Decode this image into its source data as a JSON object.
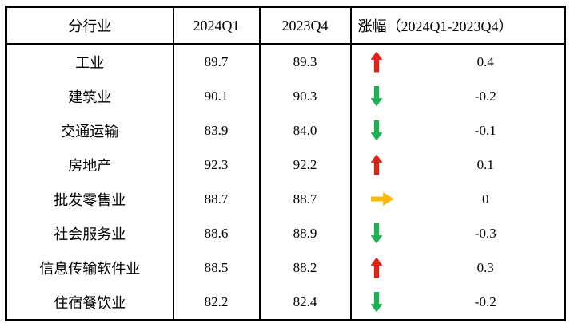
{
  "chart_data": {
    "type": "table",
    "title": "",
    "columns": {
      "industry": "分行业",
      "q1_2024": "2024Q1",
      "q4_2023": "2023Q4",
      "change": "涨幅（2024Q1-2023Q4）"
    },
    "rows": [
      {
        "industry": "工业",
        "q1_2024": "89.7",
        "q4_2023": "89.3",
        "direction": "up",
        "change": "0.4"
      },
      {
        "industry": "建筑业",
        "q1_2024": "90.1",
        "q4_2023": "90.3",
        "direction": "down",
        "change": "-0.2"
      },
      {
        "industry": "交通运输",
        "q1_2024": "83.9",
        "q4_2023": "84.0",
        "direction": "down",
        "change": "-0.1"
      },
      {
        "industry": "房地产",
        "q1_2024": "92.3",
        "q4_2023": "92.2",
        "direction": "up",
        "change": "0.1"
      },
      {
        "industry": "批发零售业",
        "q1_2024": "88.7",
        "q4_2023": "88.7",
        "direction": "flat",
        "change": "0"
      },
      {
        "industry": "社会服务业",
        "q1_2024": "88.6",
        "q4_2023": "88.9",
        "direction": "down",
        "change": "-0.3"
      },
      {
        "industry": "信息传输软件业",
        "q1_2024": "88.5",
        "q4_2023": "88.2",
        "direction": "up",
        "change": "0.3"
      },
      {
        "industry": "住宿餐饮业",
        "q1_2024": "82.2",
        "q4_2023": "82.4",
        "direction": "down",
        "change": "-0.2"
      }
    ],
    "colors": {
      "up": "#e02318",
      "down": "#1cb152",
      "flat": "#ffb900",
      "border": "#000000",
      "text": "#000000",
      "background": "#ffffff"
    },
    "layout": {
      "grid": "outer border + column dividers + header rule only",
      "legend": "none"
    }
  }
}
